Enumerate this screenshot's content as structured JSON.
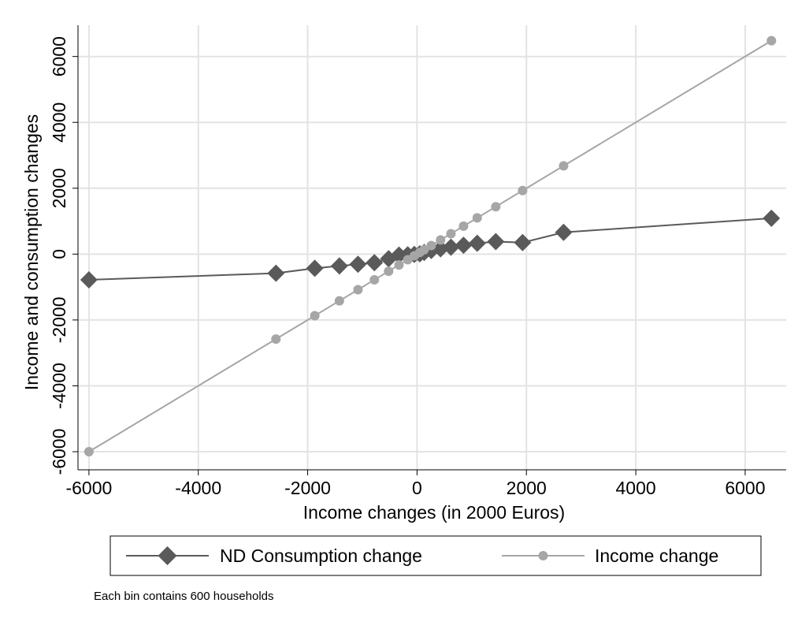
{
  "chart_data": {
    "type": "line",
    "title": "",
    "xlabel": "Income changes (in 2000 Euros)",
    "ylabel": "Income and consumption changes",
    "xlim": [
      -6200,
      6750
    ],
    "ylim": [
      -6550,
      6950
    ],
    "xticks": [
      -6000,
      -4000,
      -2000,
      0,
      2000,
      4000,
      6000
    ],
    "yticks": [
      -6000,
      -4000,
      -2000,
      0,
      2000,
      4000,
      6000
    ],
    "grid": true,
    "legend_position": "bottom",
    "note": "Each bin contains 600 households",
    "series": [
      {
        "name": "ND Consumption change",
        "color": "#5a5a5a",
        "marker": "diamond",
        "x": [
          -6000,
          -2580,
          -1870,
          -1420,
          -1080,
          -780,
          -520,
          -330,
          -170,
          -50,
          50,
          130,
          260,
          430,
          620,
          850,
          1100,
          1440,
          1930,
          2680,
          6480
        ],
        "y": [
          -780,
          -580,
          -430,
          -360,
          -310,
          -260,
          -140,
          -30,
          -20,
          -10,
          10,
          50,
          110,
          160,
          210,
          270,
          330,
          380,
          350,
          660,
          1090
        ]
      },
      {
        "name": "Income change",
        "color": "#a6a6a6",
        "marker": "circle",
        "x": [
          -6000,
          -2580,
          -1870,
          -1420,
          -1080,
          -780,
          -520,
          -330,
          -170,
          -50,
          50,
          130,
          260,
          430,
          620,
          850,
          1100,
          1440,
          1930,
          2680,
          6480
        ],
        "y": [
          -6000,
          -2580,
          -1870,
          -1420,
          -1080,
          -780,
          -520,
          -330,
          -170,
          -50,
          50,
          130,
          260,
          430,
          620,
          850,
          1100,
          1440,
          1930,
          2680,
          6480
        ]
      }
    ]
  }
}
